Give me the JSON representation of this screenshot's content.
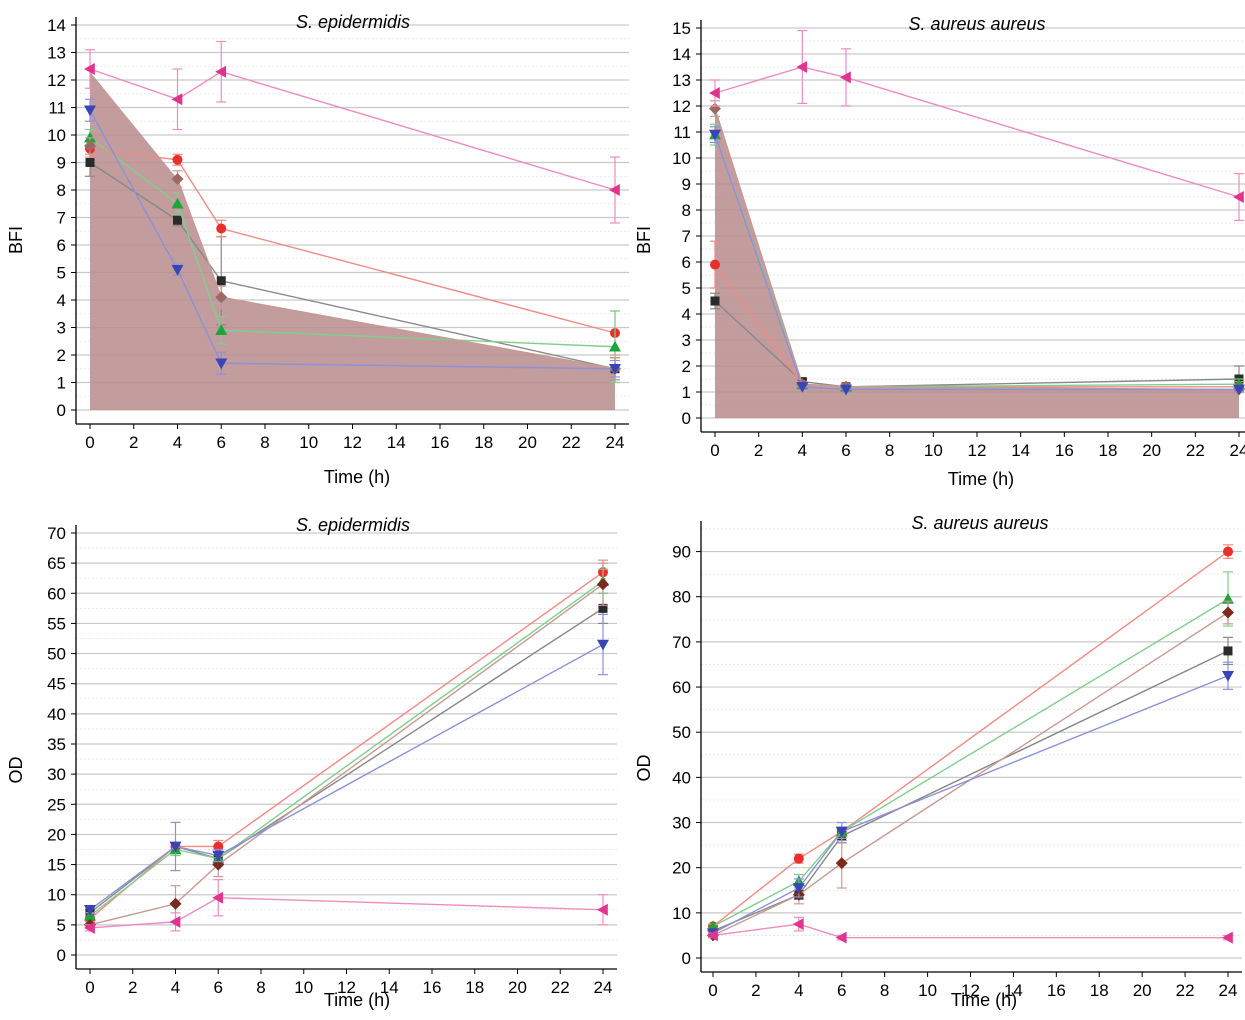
{
  "chart_data": [
    {
      "type": "line",
      "title": "S. epidermidis",
      "xlabel": "Time (h)",
      "ylabel": "BFI",
      "xlim": [
        0,
        24
      ],
      "ylim": [
        0,
        14
      ],
      "xticks": [
        0,
        2,
        4,
        6,
        8,
        10,
        12,
        14,
        16,
        18,
        20,
        22,
        24
      ],
      "yticks": [
        0,
        1,
        2,
        3,
        4,
        5,
        6,
        7,
        8,
        9,
        10,
        11,
        12,
        13,
        14
      ],
      "grid": true,
      "shaded_area": {
        "x": [
          0,
          4,
          6,
          24
        ],
        "y": [
          12.3,
          8.4,
          4.1,
          1.5
        ]
      },
      "series": [
        {
          "marker": "square",
          "color": "#2b2b2b",
          "line_color": "#888888",
          "x": [
            0,
            4,
            6,
            24
          ],
          "y": [
            9.0,
            6.9,
            4.7,
            1.5
          ],
          "err": [
            0.5,
            0.2,
            1.6,
            0.4
          ]
        },
        {
          "marker": "circle",
          "color": "#e8302a",
          "line_color": "#f08a85",
          "x": [
            0,
            4,
            6,
            24
          ],
          "y": [
            9.5,
            9.1,
            6.6,
            2.8
          ],
          "err": [
            0.3,
            0.2,
            0.3,
            0.8
          ]
        },
        {
          "marker": "triangle-up",
          "color": "#1ea43c",
          "line_color": "#7fcf8c",
          "x": [
            0,
            4,
            6,
            24
          ],
          "y": [
            9.9,
            7.5,
            2.9,
            2.3
          ],
          "err": [
            0.3,
            0.4,
            0.5,
            1.3
          ]
        },
        {
          "marker": "diamond",
          "color": "#9c6a63",
          "line_color": "#c79a94",
          "x": [
            0,
            4,
            6,
            24
          ],
          "y": [
            9.6,
            8.4,
            4.1,
            1.5
          ],
          "err": [
            0.3,
            0.3,
            0.4,
            0.4
          ]
        },
        {
          "marker": "triangle-down",
          "color": "#3a45b5",
          "line_color": "#8b91d8",
          "x": [
            0,
            4,
            6,
            24
          ],
          "y": [
            10.9,
            5.1,
            1.7,
            1.5
          ],
          "err": [
            0.4,
            0.2,
            0.4,
            0.3
          ]
        },
        {
          "marker": "triangle-left",
          "color": "#e0348f",
          "line_color": "#ee8cc0",
          "x": [
            0,
            4,
            6,
            24
          ],
          "y": [
            12.4,
            11.3,
            12.3,
            8.0
          ],
          "err": [
            0.7,
            1.1,
            1.1,
            1.2
          ]
        }
      ]
    },
    {
      "type": "line",
      "title": "S. aureus aureus",
      "xlabel": "Time (h)",
      "ylabel": "BFI",
      "xlim": [
        0,
        24
      ],
      "ylim": [
        0,
        15
      ],
      "xticks": [
        0,
        2,
        4,
        6,
        8,
        10,
        12,
        14,
        16,
        18,
        20,
        22,
        24
      ],
      "yticks": [
        0,
        1,
        2,
        3,
        4,
        5,
        6,
        7,
        8,
        9,
        10,
        11,
        12,
        13,
        14,
        15
      ],
      "grid": true,
      "shaded_area": {
        "x": [
          0,
          4,
          6,
          24
        ],
        "y": [
          11.9,
          1.3,
          1.2,
          1.1
        ]
      },
      "series": [
        {
          "marker": "square",
          "color": "#2b2b2b",
          "line_color": "#888888",
          "x": [
            0,
            4,
            6,
            24
          ],
          "y": [
            4.5,
            1.4,
            1.2,
            1.5
          ],
          "err": [
            0.3,
            0.1,
            0.1,
            0.5
          ]
        },
        {
          "marker": "circle",
          "color": "#e8302a",
          "line_color": "#f08a85",
          "x": [
            0,
            4,
            6,
            24
          ],
          "y": [
            5.9,
            1.3,
            1.2,
            1.2
          ],
          "err": [
            0.9,
            0.1,
            0.1,
            0.2
          ]
        },
        {
          "marker": "triangle-up",
          "color": "#1ea43c",
          "line_color": "#7fcf8c",
          "x": [
            0,
            4,
            6,
            24
          ],
          "y": [
            10.9,
            1.3,
            1.2,
            1.3
          ],
          "err": [
            0.4,
            0.1,
            0.1,
            0.2
          ]
        },
        {
          "marker": "diamond",
          "color": "#9c6a63",
          "line_color": "#c79a94",
          "x": [
            0,
            4,
            6,
            24
          ],
          "y": [
            11.9,
            1.3,
            1.2,
            1.1
          ],
          "err": [
            0.3,
            0.1,
            0.1,
            0.1
          ]
        },
        {
          "marker": "triangle-down",
          "color": "#3a45b5",
          "line_color": "#8b91d8",
          "x": [
            0,
            4,
            6,
            24
          ],
          "y": [
            10.9,
            1.2,
            1.1,
            1.1
          ],
          "err": [
            0.3,
            0.1,
            0.1,
            0.1
          ]
        },
        {
          "marker": "triangle-left",
          "color": "#e0348f",
          "line_color": "#ee8cc0",
          "x": [
            0,
            4,
            6,
            24
          ],
          "y": [
            12.5,
            13.5,
            13.1,
            8.5
          ],
          "err": [
            0.5,
            1.4,
            1.1,
            0.9
          ]
        }
      ]
    },
    {
      "type": "line",
      "title": "S. epidermidis",
      "xlabel": "Time (h)",
      "ylabel": "OD",
      "xlim": [
        0,
        24
      ],
      "ylim": [
        0,
        70
      ],
      "xticks": [
        0,
        2,
        4,
        6,
        8,
        10,
        12,
        14,
        16,
        18,
        20,
        22,
        24
      ],
      "yticks": [
        0,
        5,
        10,
        15,
        20,
        25,
        30,
        35,
        40,
        45,
        50,
        55,
        60,
        65,
        70
      ],
      "grid": true,
      "series": [
        {
          "marker": "square",
          "color": "#2b2b2b",
          "line_color": "#888888",
          "x": [
            0,
            4,
            6,
            24
          ],
          "y": [
            7.0,
            18.0,
            16.0,
            57.5
          ],
          "err": [
            0.5,
            0.5,
            0.5,
            2.5
          ]
        },
        {
          "marker": "circle",
          "color": "#e8302a",
          "line_color": "#f08a85",
          "x": [
            0,
            4,
            6,
            24
          ],
          "y": [
            6.0,
            18.0,
            18.0,
            63.5
          ],
          "err": [
            0.5,
            0.5,
            1.0,
            2.0
          ]
        },
        {
          "marker": "triangle-up",
          "color": "#1ea43c",
          "line_color": "#7fcf8c",
          "x": [
            0,
            4,
            6,
            24
          ],
          "y": [
            6.5,
            17.5,
            16.0,
            62.0
          ],
          "err": [
            0.5,
            1.0,
            1.0,
            2.0
          ]
        },
        {
          "marker": "diamond",
          "color": "#7a2a1e",
          "line_color": "#c79a94",
          "x": [
            0,
            4,
            6,
            24
          ],
          "y": [
            5.0,
            8.5,
            15.0,
            61.5
          ],
          "err": [
            0.5,
            3.0,
            2.0,
            3.5
          ]
        },
        {
          "marker": "triangle-down",
          "color": "#3a45b5",
          "line_color": "#8b91d8",
          "x": [
            0,
            4,
            6,
            24
          ],
          "y": [
            7.5,
            18.0,
            16.5,
            51.5
          ],
          "err": [
            0.5,
            4.0,
            1.0,
            5.0
          ]
        },
        {
          "marker": "triangle-left",
          "color": "#e0348f",
          "line_color": "#ee8cc0",
          "x": [
            0,
            4,
            6,
            24
          ],
          "y": [
            4.5,
            5.5,
            9.5,
            7.5
          ],
          "err": [
            0.5,
            1.5,
            3.0,
            2.5
          ]
        }
      ]
    },
    {
      "type": "line",
      "title": "S. aureus aureus",
      "xlabel": "Time (h)",
      "ylabel": "OD",
      "xlim": [
        0,
        24
      ],
      "ylim": [
        0,
        95
      ],
      "xticks": [
        0,
        2,
        4,
        6,
        8,
        10,
        12,
        14,
        16,
        18,
        20,
        22,
        24
      ],
      "yticks": [
        0,
        10,
        20,
        30,
        40,
        50,
        60,
        70,
        80,
        90
      ],
      "grid": true,
      "series": [
        {
          "marker": "square",
          "color": "#2b2b2b",
          "line_color": "#888888",
          "x": [
            0,
            4,
            6,
            24
          ],
          "y": [
            6.0,
            14.0,
            27.0,
            68.0
          ],
          "err": [
            0.5,
            1.0,
            1.5,
            3.0
          ]
        },
        {
          "marker": "circle",
          "color": "#e8302a",
          "line_color": "#f08a85",
          "x": [
            0,
            4,
            6,
            24
          ],
          "y": [
            7.0,
            22.0,
            28.0,
            90.0
          ],
          "err": [
            0.5,
            1.0,
            1.0,
            1.5
          ]
        },
        {
          "marker": "triangle-up",
          "color": "#1ea43c",
          "line_color": "#7fcf8c",
          "x": [
            0,
            4,
            6,
            24
          ],
          "y": [
            7.0,
            17.0,
            28.0,
            79.5
          ],
          "err": [
            0.5,
            1.5,
            1.0,
            6.0
          ]
        },
        {
          "marker": "diamond",
          "color": "#7a2a1e",
          "line_color": "#c79a94",
          "x": [
            0,
            4,
            6,
            24
          ],
          "y": [
            5.0,
            14.0,
            21.0,
            76.5
          ],
          "err": [
            0.5,
            2.0,
            5.5,
            2.5
          ]
        },
        {
          "marker": "triangle-down",
          "color": "#3a45b5",
          "line_color": "#8b91d8",
          "x": [
            0,
            4,
            6,
            24
          ],
          "y": [
            5.5,
            15.5,
            28.0,
            62.5
          ],
          "err": [
            0.5,
            2.0,
            2.0,
            3.0
          ]
        },
        {
          "marker": "triangle-left",
          "color": "#e0348f",
          "line_color": "#ee8cc0",
          "x": [
            0,
            4,
            6,
            24
          ],
          "y": [
            5.0,
            7.5,
            4.5,
            4.5
          ],
          "err": [
            0.5,
            1.5,
            0.5,
            0.5
          ]
        }
      ]
    }
  ]
}
